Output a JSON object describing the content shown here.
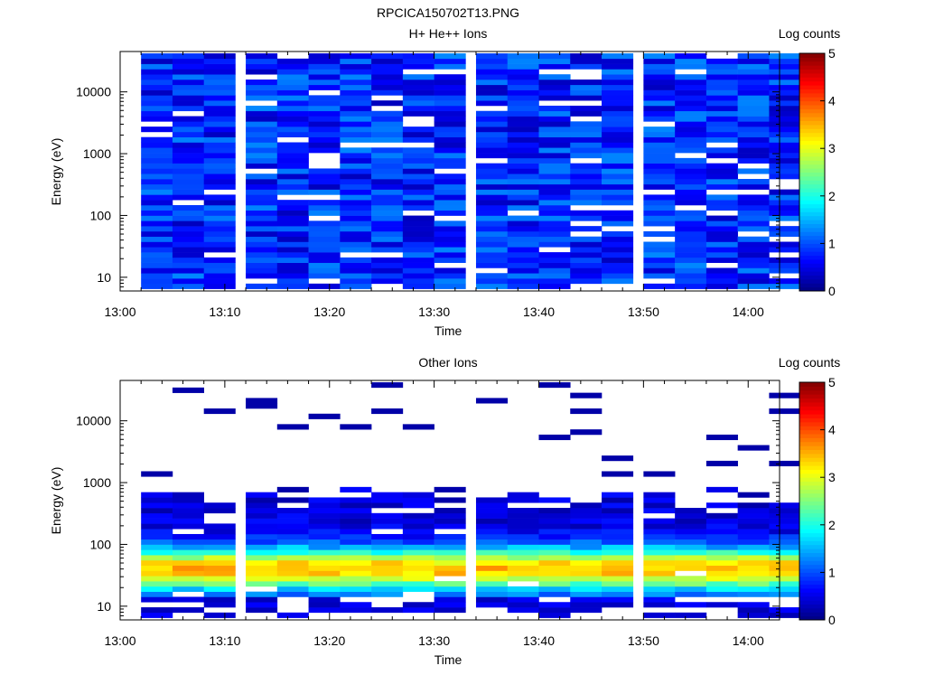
{
  "figure_title": "RPCICA150702T13.PNG",
  "colormap": [
    "#00007f",
    "#0000ff",
    "#007fff",
    "#00ffff",
    "#7fff7f",
    "#ffff00",
    "#ff7f00",
    "#ff0000",
    "#7f0000"
  ],
  "chart_data": [
    {
      "type": "heatmap",
      "title": "H+ He++ Ions",
      "xlabel": "Time",
      "ylabel": "Energy (eV)",
      "colorbar_label": "Log counts",
      "colorbar_ticks": [
        "0",
        "1",
        "2",
        "3",
        "4",
        "5"
      ],
      "clim": [
        0,
        5
      ],
      "xlim": [
        "13:00",
        "14:03"
      ],
      "x_ticks": [
        "13:00",
        "13:10",
        "13:20",
        "13:30",
        "13:40",
        "13:50",
        "14:00"
      ],
      "ylim": [
        6,
        45000
      ],
      "yscale": "log",
      "y_ticks": [
        "10",
        "100",
        "1000",
        "10000"
      ],
      "time_columns": [
        "13:02",
        "13:05",
        "13:08",
        "13:12",
        "13:15",
        "13:18",
        "13:21",
        "13:24",
        "13:27",
        "13:30",
        "13:34",
        "13:37",
        "13:40",
        "13:43",
        "13:46",
        "13:50",
        "13:53",
        "13:56",
        "13:59",
        "14:02"
      ],
      "energy_band_count": 45,
      "level_range": [
        0.3,
        1.3
      ],
      "gaps_description": "Sparse white (empty) bins scattered across energies."
    },
    {
      "type": "heatmap",
      "title": "Other Ions",
      "xlabel": "Time",
      "ylabel": "Energy (eV)",
      "colorbar_label": "Log counts",
      "colorbar_ticks": [
        "0",
        "1",
        "2",
        "3",
        "4",
        "5"
      ],
      "clim": [
        0,
        5
      ],
      "xlim": [
        "13:00",
        "14:03"
      ],
      "x_ticks": [
        "13:00",
        "13:10",
        "13:20",
        "13:30",
        "13:40",
        "13:50",
        "14:00"
      ],
      "ylim": [
        6,
        45000
      ],
      "yscale": "log",
      "y_ticks": [
        "10",
        "100",
        "1000",
        "10000"
      ],
      "time_columns": [
        "13:02",
        "13:05",
        "13:08",
        "13:12",
        "13:15",
        "13:18",
        "13:21",
        "13:24",
        "13:27",
        "13:30",
        "13:34",
        "13:37",
        "13:40",
        "13:43",
        "13:46",
        "13:50",
        "13:53",
        "13:56",
        "13:59",
        "14:02"
      ],
      "energy_band_count": 45,
      "peak_energy_eV": 40,
      "peak_level": 3.0,
      "cutoff_energy_eV": [
        200,
        900
      ],
      "high_energy_sparse_bins_level": 0.2
    }
  ]
}
